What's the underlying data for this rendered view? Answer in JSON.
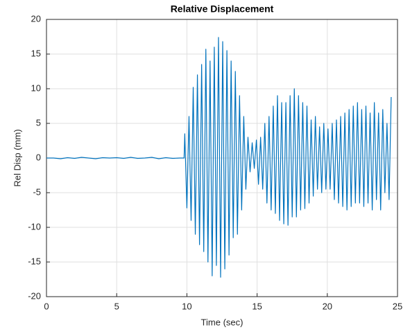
{
  "chart_data": {
    "type": "line",
    "title": "Relative Displacement",
    "xlabel": "Time (sec)",
    "ylabel": "Rel Disp (mm)",
    "xlim": [
      0,
      25
    ],
    "xticks": [
      0,
      5,
      10,
      15,
      20,
      25
    ],
    "ylim": [
      -20,
      20
    ],
    "yticks": [
      -20,
      -15,
      -10,
      -5,
      0,
      5,
      10,
      15,
      20
    ],
    "grid": true,
    "color": "#0072bd",
    "x": [
      0,
      0.5,
      1,
      1.5,
      2,
      2.5,
      3,
      3.5,
      4,
      4.5,
      5,
      5.5,
      6,
      6.5,
      7,
      7.5,
      8,
      8.5,
      9,
      9.5,
      9.8,
      9.85,
      10.0,
      10.15,
      10.3,
      10.45,
      10.6,
      10.75,
      10.9,
      11.05,
      11.2,
      11.35,
      11.5,
      11.65,
      11.8,
      11.95,
      12.1,
      12.25,
      12.4,
      12.55,
      12.7,
      12.85,
      13.0,
      13.15,
      13.3,
      13.45,
      13.6,
      13.75,
      13.9,
      14.05,
      14.2,
      14.35,
      14.5,
      14.65,
      14.8,
      14.95,
      15.1,
      15.25,
      15.4,
      15.55,
      15.7,
      15.85,
      16.0,
      16.15,
      16.3,
      16.45,
      16.6,
      16.75,
      16.9,
      17.05,
      17.2,
      17.35,
      17.5,
      17.65,
      17.8,
      17.95,
      18.1,
      18.25,
      18.4,
      18.55,
      18.7,
      18.85,
      19.0,
      19.15,
      19.3,
      19.45,
      19.6,
      19.75,
      19.9,
      20.05,
      20.2,
      20.35,
      20.5,
      20.65,
      20.8,
      20.95,
      21.1,
      21.25,
      21.4,
      21.55,
      21.7,
      21.85,
      22.0,
      22.15,
      22.3,
      22.45,
      22.6,
      22.75,
      22.9,
      23.05,
      23.2,
      23.35,
      23.5,
      23.65,
      23.8,
      23.95,
      24.1,
      24.25,
      24.4,
      24.55
    ],
    "values": [
      0,
      0,
      -0.1,
      0.05,
      -0.05,
      0.1,
      0,
      -0.1,
      0.05,
      0,
      0.05,
      -0.05,
      0.1,
      -0.05,
      0,
      0.1,
      -0.1,
      0.05,
      -0.05,
      0,
      0,
      3.5,
      -7.2,
      6,
      -9,
      10.2,
      -11,
      12,
      -12.5,
      13.5,
      -13.5,
      15.7,
      -15,
      14,
      -17,
      16,
      -15.5,
      17.4,
      -17.2,
      16.8,
      -16,
      15.5,
      -14,
      14,
      -11.5,
      12.5,
      -11,
      9,
      -7.5,
      6,
      -4.5,
      3,
      -2,
      2.2,
      -1.5,
      2.6,
      -3.8,
      3,
      -4.5,
      5,
      -6.5,
      6,
      -7.5,
      7.5,
      -8,
      9,
      -9,
      8,
      -9.5,
      8,
      -9.7,
      9,
      -8.5,
      10,
      -8.5,
      9,
      -7.5,
      8,
      -7.3,
      7.5,
      -6.5,
      5.5,
      -5.5,
      6,
      -4.5,
      4.5,
      -5,
      5,
      -4.5,
      4.2,
      -4.5,
      5,
      -6,
      5.5,
      -6.5,
      6,
      -7,
      6.5,
      -7.5,
      7,
      -7,
      7.5,
      -6.5,
      8,
      -6.5,
      7,
      -7,
      7.5,
      -6.5,
      6.5,
      -7.5,
      8,
      -6,
      6.5,
      -7.5,
      7,
      -5,
      5,
      -6,
      8.8
    ]
  }
}
